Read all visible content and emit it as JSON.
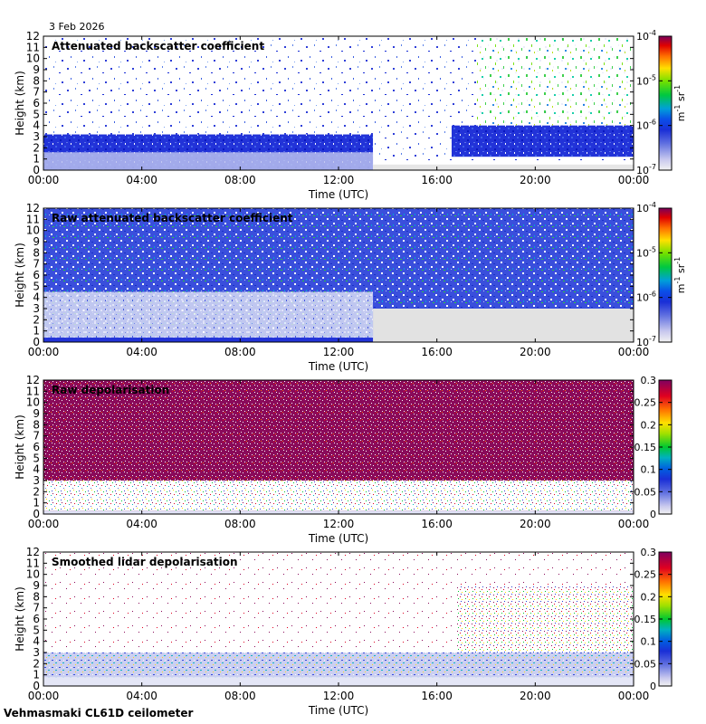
{
  "date": "3 Feb 2026",
  "footer": "Vehmasmaki CL61D ceilometer",
  "chart_data": [
    {
      "type": "heatmap",
      "title": "Attenuated backscatter coefficient",
      "xlabel": "Time (UTC)",
      "ylabel": "Height (km)",
      "x_ticks": [
        "00:00",
        "04:00",
        "08:00",
        "12:00",
        "16:00",
        "20:00",
        "00:00"
      ],
      "y_ticks": [
        0,
        1,
        2,
        3,
        4,
        5,
        6,
        7,
        8,
        9,
        10,
        11,
        12
      ],
      "ylim": [
        0,
        12
      ],
      "colorbar": {
        "scale": "log",
        "min": 1e-07,
        "max": 0.0001,
        "tick_labels": [
          {
            "base": "10",
            "exp": "-4",
            "value": 0.0001
          },
          {
            "base": "10",
            "exp": "-5",
            "value": 1e-05
          },
          {
            "base": "10",
            "exp": "-6",
            "value": 1e-06
          },
          {
            "base": "10",
            "exp": "-7",
            "value": 1e-07
          }
        ],
        "unit": {
          "m": "m",
          "m_exp": "-1",
          "sr": "sr",
          "sr_exp": "-1"
        }
      }
    },
    {
      "type": "heatmap",
      "title": "Raw attenuated backscatter coefficient",
      "xlabel": "Time (UTC)",
      "ylabel": "Height (km)",
      "x_ticks": [
        "00:00",
        "04:00",
        "08:00",
        "12:00",
        "16:00",
        "20:00",
        "00:00"
      ],
      "y_ticks": [
        0,
        1,
        2,
        3,
        4,
        5,
        6,
        7,
        8,
        9,
        10,
        11,
        12
      ],
      "ylim": [
        0,
        12
      ],
      "colorbar": {
        "scale": "log",
        "min": 1e-07,
        "max": 0.0001,
        "tick_labels": [
          {
            "base": "10",
            "exp": "-4",
            "value": 0.0001
          },
          {
            "base": "10",
            "exp": "-5",
            "value": 1e-05
          },
          {
            "base": "10",
            "exp": "-6",
            "value": 1e-06
          },
          {
            "base": "10",
            "exp": "-7",
            "value": 1e-07
          }
        ],
        "unit": {
          "m": "m",
          "m_exp": "-1",
          "sr": "sr",
          "sr_exp": "-1"
        }
      }
    },
    {
      "type": "heatmap",
      "title": "Raw depolarisation",
      "xlabel": "Time (UTC)",
      "ylabel": "Height (km)",
      "x_ticks": [
        "00:00",
        "04:00",
        "08:00",
        "12:00",
        "16:00",
        "20:00",
        "00:00"
      ],
      "y_ticks": [
        0,
        1,
        2,
        3,
        4,
        5,
        6,
        7,
        8,
        9,
        10,
        11,
        12
      ],
      "ylim": [
        0,
        12
      ],
      "colorbar": {
        "scale": "linear",
        "min": 0,
        "max": 0.3,
        "tick_labels": [
          {
            "text": "0.3",
            "value": 0.3
          },
          {
            "text": "0.25",
            "value": 0.25
          },
          {
            "text": "0.2",
            "value": 0.2
          },
          {
            "text": "0.15",
            "value": 0.15
          },
          {
            "text": "0.1",
            "value": 0.1
          },
          {
            "text": "0.05",
            "value": 0.05
          },
          {
            "text": "0",
            "value": 0
          }
        ]
      }
    },
    {
      "type": "heatmap",
      "title": "Smoothed lidar depolarisation",
      "xlabel": "Time (UTC)",
      "ylabel": "Height (km)",
      "x_ticks": [
        "00:00",
        "04:00",
        "08:00",
        "12:00",
        "16:00",
        "20:00",
        "00:00"
      ],
      "y_ticks": [
        0,
        1,
        2,
        3,
        4,
        5,
        6,
        7,
        8,
        9,
        10,
        11,
        12
      ],
      "ylim": [
        0,
        12
      ],
      "colorbar": {
        "scale": "linear",
        "min": 0,
        "max": 0.3,
        "tick_labels": [
          {
            "text": "0.3",
            "value": 0.3
          },
          {
            "text": "0.25",
            "value": 0.25
          },
          {
            "text": "0.2",
            "value": 0.2
          },
          {
            "text": "0.15",
            "value": 0.15
          },
          {
            "text": "0.1",
            "value": 0.1
          },
          {
            "text": "0.05",
            "value": 0.05
          },
          {
            "text": "0",
            "value": 0
          }
        ]
      }
    }
  ]
}
